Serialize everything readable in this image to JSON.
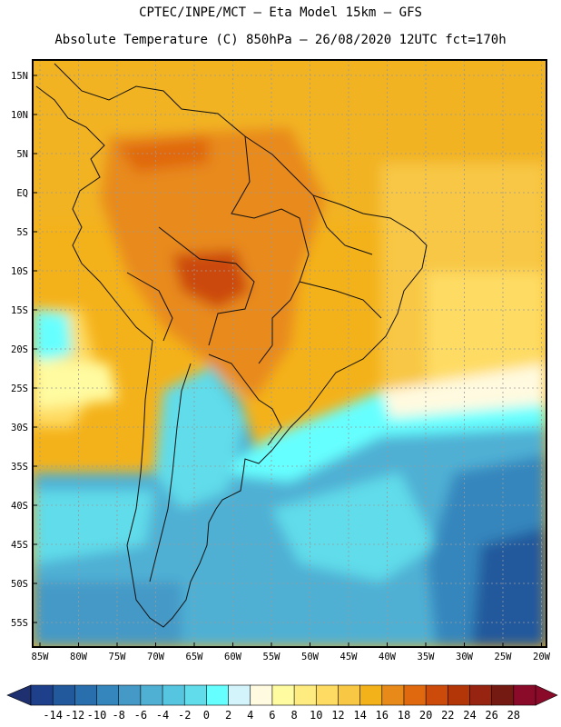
{
  "header": {
    "title_line1": "CPTEC/INPE/MCT –  Eta Model 15km – GFS",
    "title_line2": "Absolute Temperature (C) 850hPa – 26/08/2020 12UTC fct=170h"
  },
  "map": {
    "lat_labels": [
      "15N",
      "10N",
      "5N",
      "EQ",
      "5S",
      "10S",
      "15S",
      "20S",
      "25S",
      "30S",
      "35S",
      "40S",
      "45S",
      "50S",
      "55S"
    ],
    "lon_labels": [
      "85W",
      "80W",
      "75W",
      "70W",
      "65W",
      "60W",
      "55W",
      "50W",
      "45W",
      "40W",
      "35W",
      "30W",
      "25W",
      "20W"
    ]
  },
  "colorbar": {
    "levels": [
      "-14",
      "-12",
      "-10",
      "-8",
      "-6",
      "-4",
      "-2",
      "0",
      "2",
      "4",
      "6",
      "8",
      "10",
      "12",
      "14",
      "16",
      "18",
      "20",
      "22",
      "24",
      "26",
      "28"
    ],
    "colors": [
      "#1e3f8a",
      "#22589c",
      "#2a6fad",
      "#3586bd",
      "#4499c6",
      "#4fb0d4",
      "#56c6e0",
      "#60dcea",
      "#66ffff",
      "#d2f4fa",
      "#fffae0",
      "#fffba0",
      "#ffec80",
      "#fedc63",
      "#f8c744",
      "#f4b21a",
      "#e88a1a",
      "#e06910",
      "#cc4a0a",
      "#b33609",
      "#962410",
      "#741a12",
      "#8a0a2a"
    ],
    "left_arrow_color": "#1e3070",
    "right_arrow_color": "#8a0a2a"
  }
}
